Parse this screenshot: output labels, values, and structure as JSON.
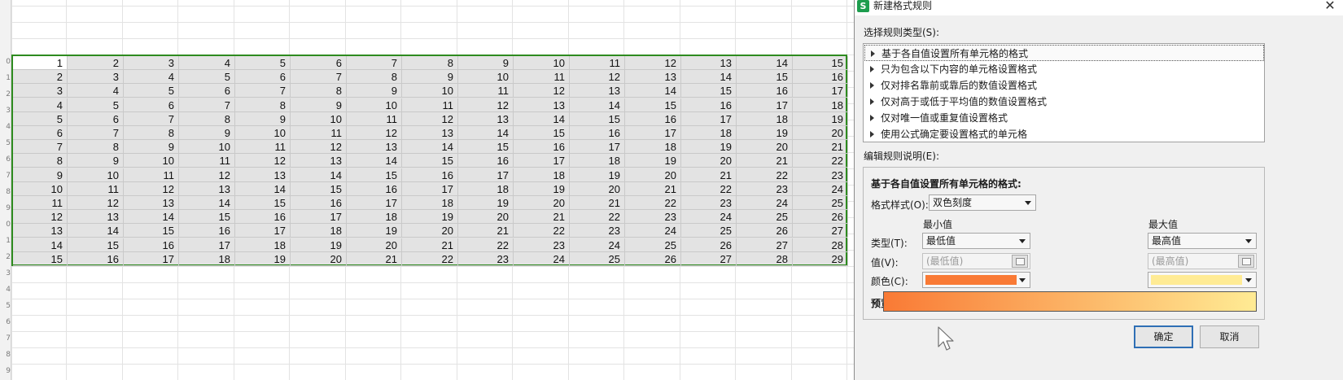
{
  "sheet": {
    "row_numbers": [
      "0",
      "1",
      "2",
      "3",
      "4",
      "5",
      "6",
      "7",
      "8",
      "9",
      "0",
      "1",
      "2",
      "3",
      "4",
      "5",
      "6",
      "7",
      "8",
      "9"
    ],
    "data": [
      [
        "1",
        "2",
        "3",
        "4",
        "5",
        "6",
        "7",
        "8",
        "9",
        "10",
        "11",
        "12",
        "13",
        "14",
        "15"
      ],
      [
        "2",
        "3",
        "4",
        "5",
        "6",
        "7",
        "8",
        "9",
        "10",
        "11",
        "12",
        "13",
        "14",
        "15",
        "16"
      ],
      [
        "3",
        "4",
        "5",
        "6",
        "7",
        "8",
        "9",
        "10",
        "11",
        "12",
        "13",
        "14",
        "15",
        "16",
        "17"
      ],
      [
        "4",
        "5",
        "6",
        "7",
        "8",
        "9",
        "10",
        "11",
        "12",
        "13",
        "14",
        "15",
        "16",
        "17",
        "18"
      ],
      [
        "5",
        "6",
        "7",
        "8",
        "9",
        "10",
        "11",
        "12",
        "13",
        "14",
        "15",
        "16",
        "17",
        "18",
        "19"
      ],
      [
        "6",
        "7",
        "8",
        "9",
        "10",
        "11",
        "12",
        "13",
        "14",
        "15",
        "16",
        "17",
        "18",
        "19",
        "20"
      ],
      [
        "7",
        "8",
        "9",
        "10",
        "11",
        "12",
        "13",
        "14",
        "15",
        "16",
        "17",
        "18",
        "19",
        "20",
        "21"
      ],
      [
        "8",
        "9",
        "10",
        "11",
        "12",
        "13",
        "14",
        "15",
        "16",
        "17",
        "18",
        "19",
        "20",
        "21",
        "22"
      ],
      [
        "9",
        "10",
        "11",
        "12",
        "13",
        "14",
        "15",
        "16",
        "17",
        "18",
        "19",
        "20",
        "21",
        "22",
        "23"
      ],
      [
        "10",
        "11",
        "12",
        "13",
        "14",
        "15",
        "16",
        "17",
        "18",
        "19",
        "20",
        "21",
        "22",
        "23",
        "24"
      ],
      [
        "11",
        "12",
        "13",
        "14",
        "15",
        "16",
        "17",
        "18",
        "19",
        "20",
        "21",
        "22",
        "23",
        "24",
        "25"
      ],
      [
        "12",
        "13",
        "14",
        "15",
        "16",
        "17",
        "18",
        "19",
        "20",
        "21",
        "22",
        "23",
        "24",
        "25",
        "26"
      ],
      [
        "13",
        "14",
        "15",
        "16",
        "17",
        "18",
        "19",
        "20",
        "21",
        "22",
        "23",
        "24",
        "25",
        "26",
        "27"
      ],
      [
        "14",
        "15",
        "16",
        "17",
        "18",
        "19",
        "20",
        "21",
        "22",
        "23",
        "24",
        "25",
        "26",
        "27",
        "28"
      ],
      [
        "15",
        "16",
        "17",
        "18",
        "19",
        "20",
        "21",
        "22",
        "23",
        "24",
        "25",
        "26",
        "27",
        "28",
        "29"
      ]
    ],
    "selection_color": "#2e8b1f"
  },
  "dialog": {
    "app_icon_letter": "S",
    "title": "新建格式规则",
    "close_glyph": "✕",
    "rule_type_label": "选择规则类型(S):",
    "rule_types": [
      "基于各自值设置所有单元格的格式",
      "只为包含以下内容的单元格设置格式",
      "仅对排名靠前或靠后的数值设置格式",
      "仅对高于或低于平均值的数值设置格式",
      "仅对唯一值或重复值设置格式",
      "使用公式确定要设置格式的单元格"
    ],
    "edit_desc_label": "编辑规则说明(E):",
    "desc_heading": "基于各自值设置所有单元格的格式:",
    "format_style_label": "格式样式(O):",
    "format_style_value": "双色刻度",
    "min_header": "最小值",
    "max_header": "最大值",
    "type_label": "类型(T):",
    "min_type": "最低值",
    "max_type": "最高值",
    "value_label": "值(V):",
    "min_value_placeholder": "(最低值)",
    "max_value_placeholder": "(最高值)",
    "color_label": "颜色(C):",
    "min_color": "#f97a35",
    "max_color": "#ffeb94",
    "preview_label": "预览:",
    "ok_label": "确定",
    "cancel_label": "取消"
  }
}
